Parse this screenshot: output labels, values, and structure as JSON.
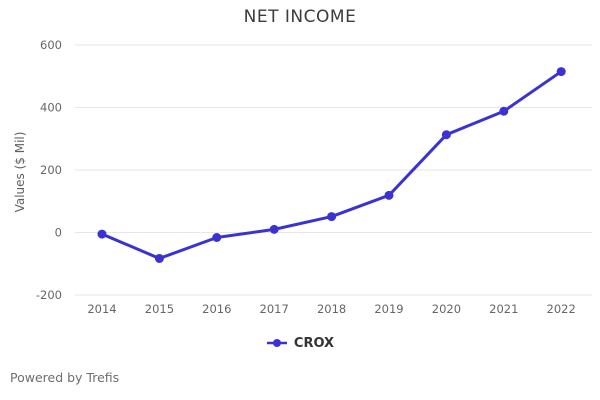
{
  "title": "NET INCOME",
  "y_axis_title": "Values ($ Mil)",
  "chart_data": {
    "type": "line",
    "title": "NET INCOME",
    "xlabel": "",
    "ylabel": "Values ($ Mil)",
    "categories": [
      2014,
      2015,
      2016,
      2017,
      2018,
      2019,
      2020,
      2021,
      2022
    ],
    "series": [
      {
        "name": "CROX",
        "values": [
          -5,
          -83,
          -16,
          10,
          51,
          119,
          313,
          388,
          515
        ]
      }
    ],
    "ylim": [
      -200,
      600
    ],
    "yticks": [
      -200,
      0,
      200,
      400,
      600
    ],
    "grid": true,
    "legend_position": "bottom"
  },
  "legend": {
    "items": [
      {
        "label": "CROX",
        "color": "#3b33d1"
      }
    ]
  },
  "footer": {
    "text": "Powered by Trefis"
  },
  "colors": {
    "line": "#3b33d1",
    "grid": "#e6e6e6",
    "title": "#3c3c3c",
    "tick_label": "#666666",
    "footer": "#6e6e6e",
    "background": "#ffffff"
  }
}
